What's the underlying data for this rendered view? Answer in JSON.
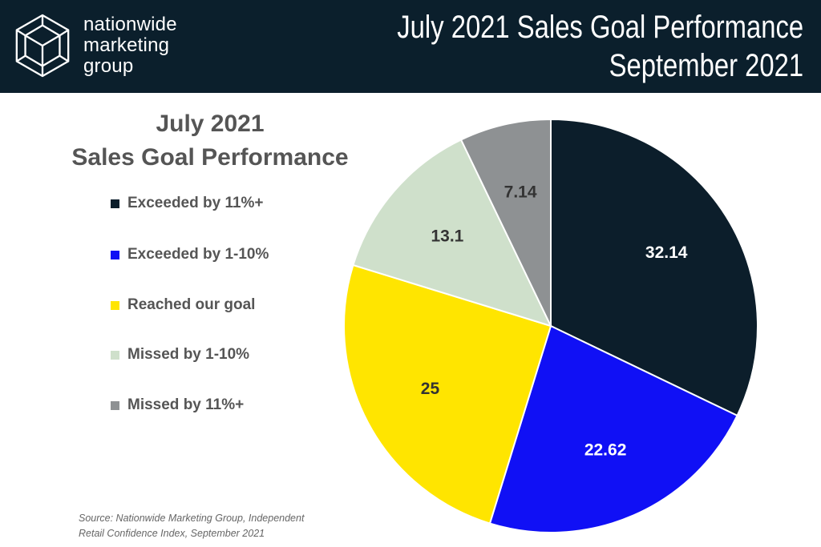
{
  "header": {
    "brand_lines": [
      "nationwide",
      "marketing",
      "group"
    ],
    "title_lines": [
      "July 2021 Sales Goal Performance",
      "September 2021"
    ],
    "logo_icon": "geometric-gem-icon"
  },
  "colors": {
    "header_bg": "#0b1f2c",
    "text_gray": "#555555"
  },
  "chart_data": {
    "type": "pie",
    "title": [
      "July 2021",
      "Sales Goal Performance"
    ],
    "legend_position": "left",
    "slices": [
      {
        "label": "Exceeded by 11%+",
        "value": 32.14,
        "display": "32.14",
        "color": "#0c1e2b",
        "label_color": "#ffffff"
      },
      {
        "label": "Exceeded by 1-10%",
        "value": 22.62,
        "display": "22.62",
        "color": "#1010f5",
        "label_color": "#ffffff"
      },
      {
        "label": "Reached our goal",
        "value": 25,
        "display": "25",
        "color": "#ffe500",
        "label_color": "#333333"
      },
      {
        "label": "Missed by 1-10%",
        "value": 13.1,
        "display": "13.1",
        "color": "#cfe0cb",
        "label_color": "#333333"
      },
      {
        "label": "Missed by 11%+",
        "value": 7.14,
        "display": "7.14",
        "color": "#8e9193",
        "label_color": "#333333"
      }
    ]
  },
  "source": {
    "lines": [
      "Source: Nationwide Marketing Group, Independent",
      "Retail Confidence Index, September 2021"
    ]
  }
}
